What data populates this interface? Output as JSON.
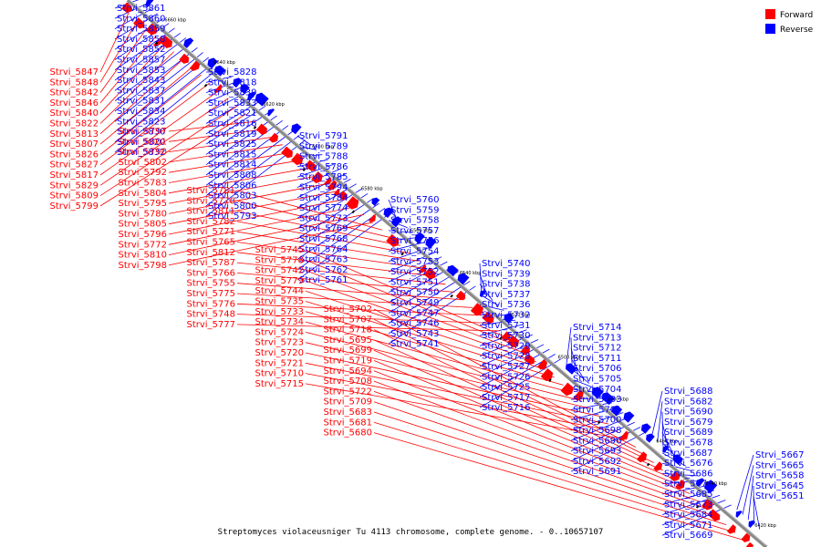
{
  "caption": "Streptomyces violaceusniger Tu 4113 chromosome, complete genome. - 0..10657107",
  "legend": [
    {
      "label": "Forward",
      "color": "#ff0000"
    },
    {
      "label": "Reverse",
      "color": "#0000ff"
    }
  ],
  "colors": {
    "forward": "#ff0000",
    "reverse": "#0000ff",
    "backbone": "#888888"
  },
  "kbp_ticks": [
    "6660 kbp",
    "6640 kbp",
    "6620 kbp",
    "6600 kbp",
    "6580 kbp",
    "6560 kbp",
    "6540 kbp",
    "6520 kbp",
    "6500 kbp",
    "6480 kbp",
    "6460 kbp",
    "6440 kbp",
    "6420 kbp"
  ],
  "reverse_genes": [
    "Strvi_5861",
    "Strvi_5860",
    "Strvi_5859",
    "Strvi_5858",
    "Strvi_5852",
    "Strvi_5857",
    "Strvi_5853",
    "Strvi_5843",
    "Strvi_5837",
    "Strvi_5831",
    "Strvi_5834",
    "Strvi_5823",
    "Strvi_5830",
    "Strvi_5820",
    "Strvi_5832",
    "Strvi_5828",
    "Strvi_5818",
    "Strvi_5839",
    "Strvi_5833",
    "Strvi_5821",
    "Strvi_5816",
    "Strvi_5819",
    "Strvi_5825",
    "Strvi_5815",
    "Strvi_5814",
    "Strvi_5808",
    "Strvi_5806",
    "Strvi_5803",
    "Strvi_5800",
    "Strvi_5793",
    "Strvi_5791",
    "Strvi_5789",
    "Strvi_5788",
    "Strvi_5786",
    "Strvi_5785",
    "Strvi_5794",
    "Strvi_5784",
    "Strvi_5774",
    "Strvi_5773",
    "Strvi_5769",
    "Strvi_5768",
    "Strvi_5764",
    "Strvi_5763",
    "Strvi_5762",
    "Strvi_5761",
    "Strvi_5760",
    "Strvi_5759",
    "Strvi_5758",
    "Strvi_5757",
    "Strvi_5756",
    "Strvi_5754",
    "Strvi_5753",
    "Strvi_5752",
    "Strvi_5751",
    "Strvi_5750",
    "Strvi_5749",
    "Strvi_5747",
    "Strvi_5746",
    "Strvi_5743",
    "Strvi_5741",
    "Strvi_5740",
    "Strvi_5739",
    "Strvi_5738",
    "Strvi_5737",
    "Strvi_5736",
    "Strvi_5732",
    "Strvi_5731",
    "Strvi_5730",
    "Strvi_5729",
    "Strvi_5728",
    "Strvi_5727",
    "Strvi_5726",
    "Strvi_5725",
    "Strvi_5717",
    "Strvi_5716",
    "Strvi_5714",
    "Strvi_5713",
    "Strvi_5712",
    "Strvi_5711",
    "Strvi_5706",
    "Strvi_5705",
    "Strvi_5704",
    "Strvi_5703",
    "Strvi_5701",
    "Strvi_5700",
    "Strvi_5698",
    "Strvi_5696",
    "Strvi_5693",
    "Strvi_5692",
    "Strvi_5691",
    "Strvi_5688",
    "Strvi_5682",
    "Strvi_5690",
    "Strvi_5679",
    "Strvi_5689",
    "Strvi_5678",
    "Strvi_5687",
    "Strvi_5676",
    "Strvi_5686",
    "Strvi_5674",
    "Strvi_5685",
    "Strvi_5673",
    "Strvi_5684",
    "Strvi_5671",
    "Strvi_5669",
    "Strvi_5667",
    "Strvi_5665",
    "Strvi_5658",
    "Strvi_5645",
    "Strvi_5651"
  ],
  "forward_genes": [
    "Strvi_5847",
    "Strvi_5848",
    "Strvi_5842",
    "Strvi_5846",
    "Strvi_5840",
    "Strvi_5822",
    "Strvi_5813",
    "Strvi_5807",
    "Strvi_5826",
    "Strvi_5827",
    "Strvi_5817",
    "Strvi_5829",
    "Strvi_5809",
    "Strvi_5799",
    "Strvi_5797",
    "Strvi_5801",
    "Strvi_5790",
    "Strvi_5802",
    "Strvi_5792",
    "Strvi_5783",
    "Strvi_5804",
    "Strvi_5795",
    "Strvi_5780",
    "Strvi_5805",
    "Strvi_5796",
    "Strvi_5772",
    "Strvi_5810",
    "Strvi_5798",
    "Strvi_5781",
    "Strvi_5770",
    "Strvi_5811",
    "Strvi_5782",
    "Strvi_5771",
    "Strvi_5765",
    "Strvi_5812",
    "Strvi_5787",
    "Strvi_5766",
    "Strvi_5755",
    "Strvi_5775",
    "Strvi_5776",
    "Strvi_5748",
    "Strvi_5777",
    "Strvi_5745",
    "Strvi_5778",
    "Strvi_5742",
    "Strvi_5779",
    "Strvi_5744",
    "Strvi_5735",
    "Strvi_5733",
    "Strvi_5734",
    "Strvi_5724",
    "Strvi_5723",
    "Strvi_5720",
    "Strvi_5721",
    "Strvi_5710",
    "Strvi_5715",
    "Strvi_5702",
    "Strvi_5707",
    "Strvi_5718",
    "Strvi_5695",
    "Strvi_5699",
    "Strvi_5719",
    "Strvi_5694",
    "Strvi_5708",
    "Strvi_5722",
    "Strvi_5709",
    "Strvi_5683",
    "Strvi_5681",
    "Strvi_5680"
  ]
}
